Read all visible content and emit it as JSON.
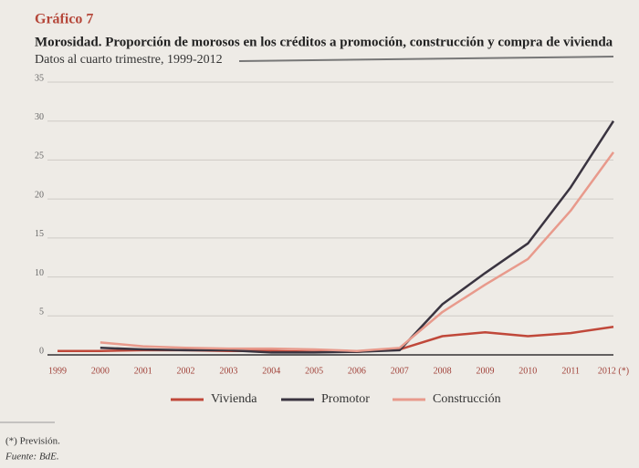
{
  "chart_data": {
    "type": "line",
    "label": "Gráfico 7",
    "title": "Morosidad. Proporción de morosos en los créditos a promoción, construcción y compra de vivienda",
    "subtitle": "Datos al cuarto trimestre, 1999-2012",
    "categories": [
      "1999",
      "2000",
      "2001",
      "2002",
      "2003",
      "2004",
      "2005",
      "2006",
      "2007",
      "2008",
      "2009",
      "2010",
      "2011",
      "2012 (*)"
    ],
    "series": [
      {
        "name": "Vivienda",
        "color": "#c0483a",
        "values": [
          0.5,
          0.5,
          0.6,
          0.6,
          0.5,
          0.5,
          0.4,
          0.4,
          0.7,
          2.4,
          2.9,
          2.4,
          2.8,
          3.6
        ]
      },
      {
        "name": "Promotor",
        "color": "#3a3440",
        "values": [
          null,
          0.9,
          0.7,
          0.6,
          0.6,
          0.3,
          0.3,
          0.4,
          0.6,
          6.5,
          10.5,
          14.3,
          21.5,
          30
        ]
      },
      {
        "name": "Construcción",
        "color": "#e89a8c",
        "values": [
          null,
          1.6,
          1.1,
          0.9,
          0.8,
          0.8,
          0.7,
          0.5,
          0.9,
          5.5,
          9,
          12.3,
          18.5,
          26
        ]
      }
    ],
    "ylim": [
      0,
      35
    ],
    "yticks": [
      0,
      5,
      10,
      15,
      20,
      25,
      30,
      35
    ],
    "grid": true,
    "notes": [
      "(*)  Previsión.",
      "Fuente: BdE."
    ]
  }
}
